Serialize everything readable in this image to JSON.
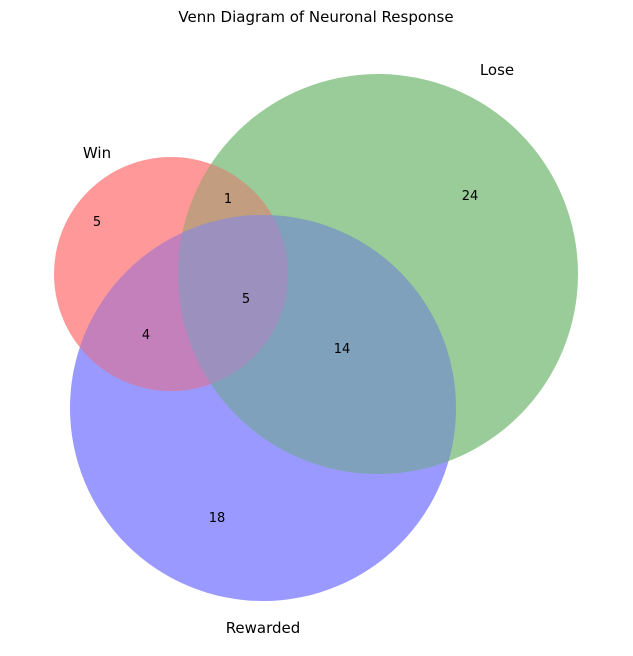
{
  "title": "Venn Diagram of Neuronal Response",
  "sets": [
    {
      "name": "Win",
      "color": "#ff7f7f"
    },
    {
      "name": "Lose",
      "color": "#7fbf7f"
    },
    {
      "name": "Rewarded",
      "color": "#7f7fff"
    }
  ],
  "regions": {
    "win_only": "5",
    "lose_only": "24",
    "rewarded_only": "18",
    "win_lose": "1",
    "win_rewarded": "4",
    "lose_rewarded": "14",
    "all_three": "5"
  },
  "chart_data": {
    "type": "venn",
    "title": "Venn Diagram of Neuronal Response",
    "sets": [
      "Win",
      "Lose",
      "Rewarded"
    ],
    "subsets": [
      {
        "sets": [
          "Win"
        ],
        "value": 5
      },
      {
        "sets": [
          "Lose"
        ],
        "value": 24
      },
      {
        "sets": [
          "Rewarded"
        ],
        "value": 18
      },
      {
        "sets": [
          "Win",
          "Lose"
        ],
        "value": 1
      },
      {
        "sets": [
          "Win",
          "Rewarded"
        ],
        "value": 4
      },
      {
        "sets": [
          "Lose",
          "Rewarded"
        ],
        "value": 14
      },
      {
        "sets": [
          "Win",
          "Lose",
          "Rewarded"
        ],
        "value": 5
      }
    ]
  }
}
